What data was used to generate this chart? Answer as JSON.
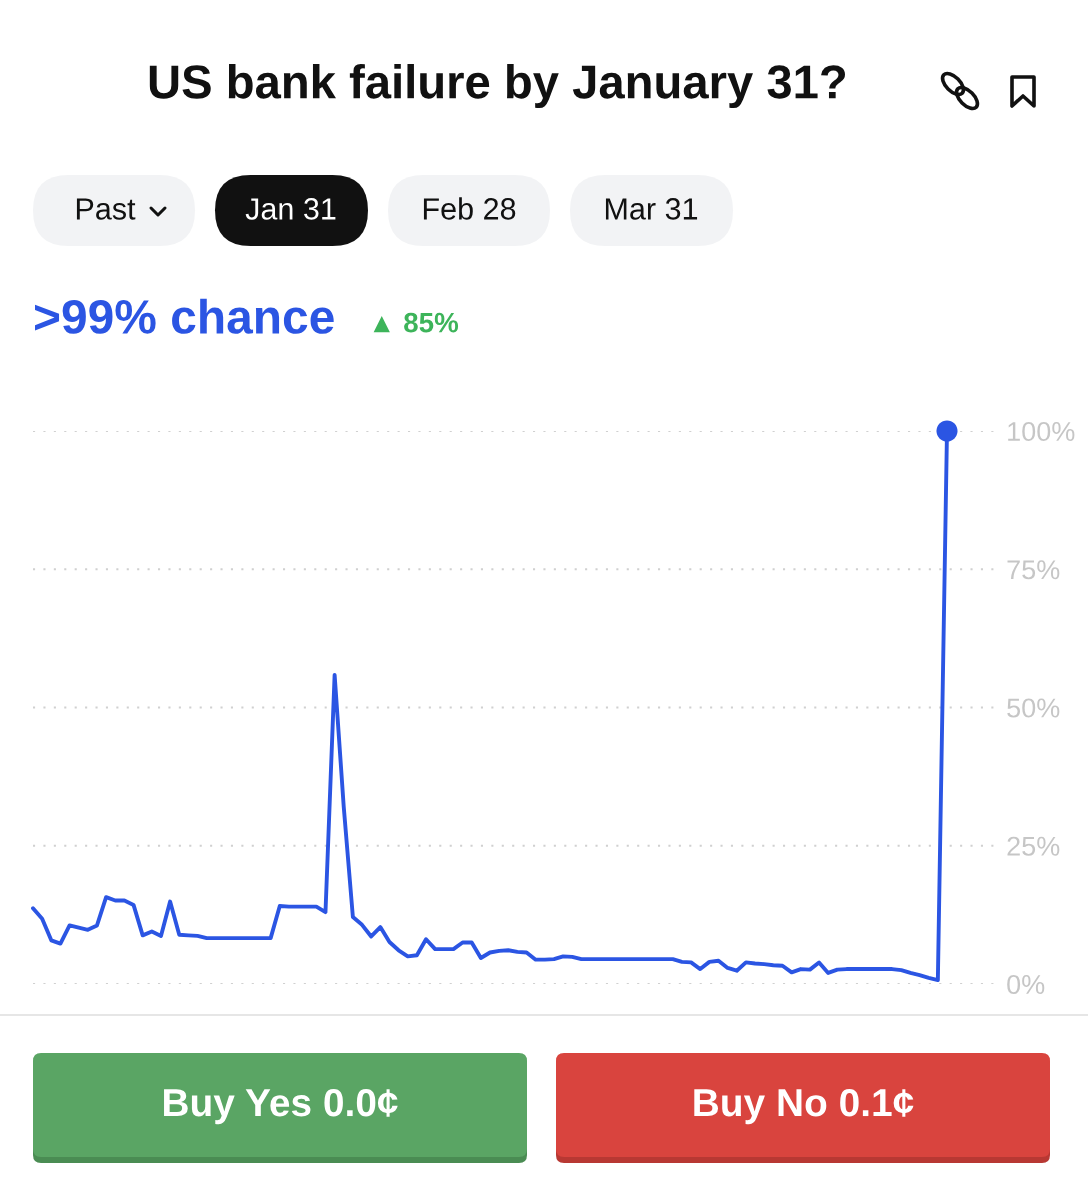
{
  "chart_data": {
    "type": "line",
    "title": "US bank failure by January 31?",
    "annotations": [
      "Past",
      "Jan 31",
      "Feb 28",
      "Mar 31",
      ">99% chance",
      "▲ 85%",
      "Buy Yes 0.0¢",
      "Buy No 0.1¢"
    ],
    "categories": [
      null,
      null,
      null,
      null,
      null,
      null,
      null,
      null,
      null,
      null,
      null,
      null,
      null,
      null,
      null,
      null,
      null,
      null,
      null,
      null,
      null,
      null,
      null,
      null,
      null,
      null,
      null,
      null,
      null,
      null,
      null,
      null,
      null,
      null,
      null,
      null,
      null,
      null,
      null,
      null,
      null,
      null,
      null,
      null,
      null,
      null,
      null,
      null,
      null,
      null,
      null,
      null,
      null,
      null,
      null,
      null,
      null,
      null,
      null,
      null,
      null,
      null,
      null,
      null,
      null,
      null,
      null,
      null,
      null,
      null,
      null,
      null,
      null,
      null,
      null,
      null,
      null,
      null,
      null,
      null,
      null,
      null,
      null,
      null,
      null,
      null,
      null,
      null,
      null,
      null,
      null,
      null,
      null,
      null,
      null,
      null,
      null,
      null,
      null,
      null,
      null
    ],
    "series": [
      {
        "color": "#2b55e3",
        "values": [
          13.7,
          11.8,
          7.9,
          7.3,
          10.6,
          10.2,
          9.8,
          10.6,
          15.7,
          15.1,
          15.1,
          14.3,
          8.8,
          9.5,
          8.7,
          14.9,
          8.9,
          8.8,
          8.7,
          8.3,
          8.3,
          8.3,
          8.3,
          8.3,
          8.3,
          8.3,
          8.3,
          14.1,
          14.0,
          14.0,
          14.0,
          14.0,
          13.0,
          55.9,
          32.0,
          12.1,
          10.7,
          8.6,
          10.3,
          7.6,
          6.1,
          5.0,
          5.2,
          8.1,
          6.3,
          6.3,
          6.3,
          7.5,
          7.5,
          4.7,
          5.7,
          6.0,
          6.1,
          5.8,
          5.7,
          4.4,
          4.4,
          4.5,
          5.0,
          4.9,
          4.5,
          4.5,
          4.5,
          4.5,
          4.5,
          4.5,
          4.5,
          4.5,
          4.5,
          4.5,
          4.5,
          4.0,
          3.9,
          2.7,
          4.0,
          4.2,
          2.9,
          2.4,
          3.9,
          3.7,
          3.6,
          3.4,
          3.3,
          2.1,
          2.7,
          2.6,
          3.9,
          2.0,
          2.6,
          2.7,
          2.7,
          2.7,
          2.7,
          2.7,
          2.7,
          2.5,
          2.0,
          1.6,
          1.1,
          0.7,
          100
        ]
      },
      {
        "type": "scatter",
        "color": "#2b55e3",
        "values": [
          null,
          null,
          null,
          null,
          null,
          null,
          null,
          null,
          null,
          null,
          null,
          null,
          null,
          null,
          null,
          null,
          null,
          null,
          null,
          null,
          null,
          null,
          null,
          null,
          null,
          null,
          null,
          null,
          null,
          null,
          null,
          null,
          null,
          null,
          null,
          null,
          null,
          null,
          null,
          null,
          null,
          null,
          null,
          null,
          null,
          null,
          null,
          null,
          null,
          null,
          null,
          null,
          null,
          null,
          null,
          null,
          null,
          null,
          null,
          null,
          null,
          null,
          null,
          null,
          null,
          null,
          null,
          null,
          null,
          null,
          null,
          null,
          null,
          null,
          null,
          null,
          null,
          null,
          null,
          null,
          null,
          null,
          null,
          null,
          null,
          null,
          null,
          null,
          null,
          null,
          null,
          null,
          null,
          null,
          null,
          null,
          null,
          null,
          null,
          null,
          100
        ]
      }
    ],
    "ylim": [
      0,
      100
    ],
    "yticks": [
      {
        "value": 0,
        "label": "0%"
      },
      {
        "value": 25,
        "label": "25%"
      },
      {
        "value": 50,
        "label": "50%"
      },
      {
        "value": 75,
        "label": "75%"
      },
      {
        "value": 100,
        "label": "100%"
      }
    ],
    "grid": "y",
    "line_style": "solid",
    "tick_labels": "y"
  }
}
